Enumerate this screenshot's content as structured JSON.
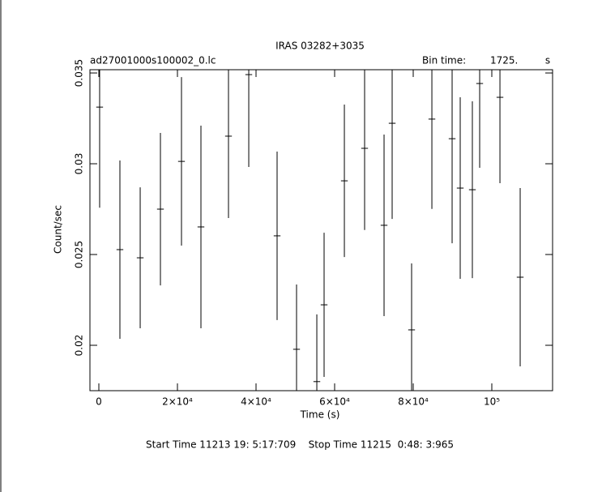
{
  "chart_data": {
    "type": "errorbar",
    "title": "IRAS 03282+3035",
    "subtitle": "ad27001000s100002_0.lc",
    "bin_time_label": "Bin time:",
    "bin_time": {
      "value": 1725,
      "label": "1725."
    },
    "bin_time_unit": "s",
    "xlabel": "Time (s)",
    "ylabel": "Count/sec",
    "footer": "Start Time 11213 19: 5:17:709    Stop Time 11215  0:48: 3:965",
    "color": "#000000",
    "x": [
      200,
      5360,
      10520,
      15670,
      21030,
      25980,
      32990,
      38150,
      45360,
      50310,
      55470,
      57320,
      62480,
      67630,
      72580,
      74640,
      79590,
      84750,
      89900,
      91960,
      95050,
      96910,
      102070,
      107220
    ],
    "values": [
      0.03312,
      0.02527,
      0.02482,
      0.0275,
      0.03013,
      0.02652,
      0.03152,
      0.03491,
      0.02603,
      0.01978,
      0.018,
      0.02223,
      0.02906,
      0.03085,
      0.02661,
      0.03223,
      0.02085,
      0.03246,
      0.03138,
      0.02866,
      0.02857,
      0.03442,
      0.03366,
      0.02375
    ],
    "errors": [
      0.00554,
      0.00491,
      0.00388,
      0.0042,
      0.00464,
      0.00558,
      0.00451,
      0.00509,
      0.00464,
      0.00357,
      0.0037,
      0.00397,
      0.0042,
      0.0045,
      0.005,
      0.00527,
      0.00366,
      0.00495,
      0.00576,
      0.005,
      0.00487,
      0.00464,
      0.00473,
      0.00491
    ],
    "xlim": [
      -2268,
      115464
    ],
    "ylim": [
      0.0175,
      0.03518
    ],
    "xticks": [
      0,
      {
        "value": 20000,
        "label": "2×10⁴"
      },
      {
        "value": 40000,
        "label": "4×10⁴"
      },
      {
        "value": 60000,
        "label": "6×10⁴"
      },
      {
        "value": 80000,
        "label": "8×10⁴"
      },
      {
        "value": 100000,
        "label": "10⁵"
      }
    ],
    "yticks": [
      0.02,
      0.025,
      0.03,
      0.035
    ]
  }
}
